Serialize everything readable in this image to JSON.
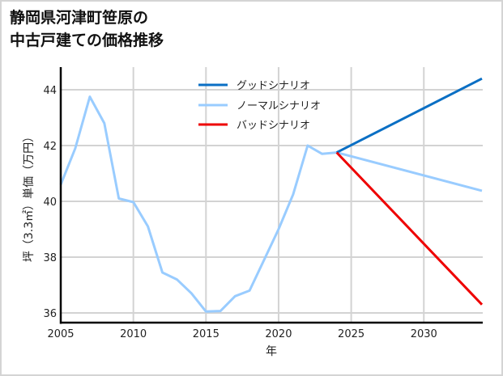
{
  "title_lines": [
    "静岡県河津町笹原の",
    "中古戸建ての価格推移"
  ],
  "chart_data": {
    "type": "line",
    "title": "静岡県河津町笹原の中古戸建ての価格推移",
    "xlabel": "年",
    "ylabel": "坪（3.3㎡）単価（万円）",
    "xlim": [
      2005,
      2034
    ],
    "ylim": [
      35.6,
      44.8
    ],
    "xticks": [
      2005,
      2010,
      2015,
      2020,
      2025,
      2030
    ],
    "yticks": [
      36,
      38,
      40,
      42,
      44
    ],
    "grid": true,
    "legend_position": "upper center",
    "series": [
      {
        "name": "グッドシナリオ",
        "color": "#0a6fc4",
        "x": [
          2024,
          2034
        ],
        "y": [
          41.75,
          44.4
        ]
      },
      {
        "name": "ノーマルシナリオ",
        "color": "#99ccff",
        "x": [
          2005,
          2006,
          2007,
          2008,
          2009,
          2010,
          2011,
          2012,
          2013,
          2014,
          2015,
          2016,
          2017,
          2018,
          2019,
          2020,
          2021,
          2022,
          2023,
          2024,
          2034
        ],
        "y": [
          40.6,
          41.9,
          43.75,
          42.8,
          40.1,
          39.97,
          39.1,
          37.45,
          37.2,
          36.7,
          36.05,
          36.07,
          36.6,
          36.8,
          37.9,
          39.0,
          40.25,
          42.0,
          41.7,
          41.75,
          40.38
        ]
      },
      {
        "name": "バッドシナリオ",
        "color": "#ee0000",
        "x": [
          2024,
          2034
        ],
        "y": [
          41.75,
          36.3
        ]
      }
    ]
  }
}
